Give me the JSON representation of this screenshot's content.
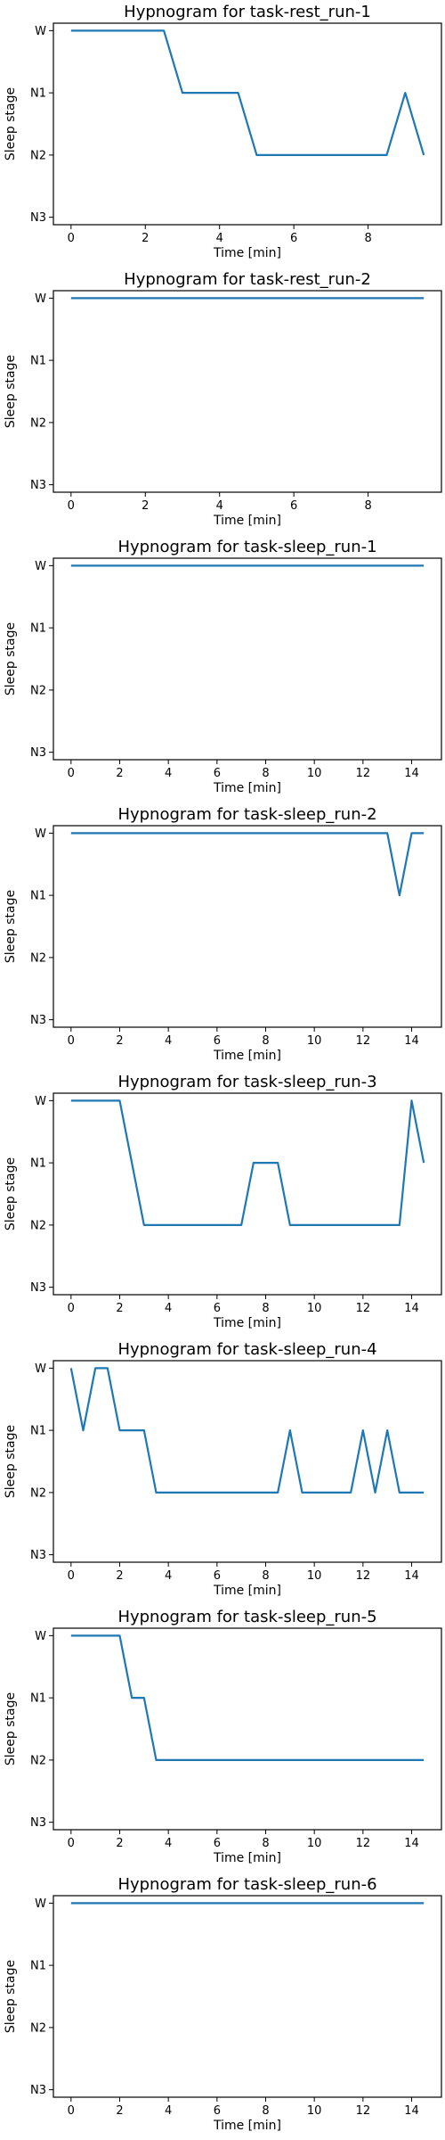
{
  "style": {
    "line_color": "#1f77b4",
    "axis_color": "#000000",
    "background": "#ffffff"
  },
  "chart_data": [
    {
      "type": "line",
      "title": "Hypnogram for task-rest_run-1",
      "xlabel": "Time [min]",
      "ylabel": "Sleep stage",
      "xlim": [
        -0.475,
        9.975
      ],
      "xticks": [
        0,
        2,
        4,
        6,
        8
      ],
      "yticks": [
        "W",
        "N1",
        "N2",
        "N3"
      ],
      "grid": false,
      "series": [
        {
          "x": [
            0,
            0.5,
            1,
            1.5,
            2,
            2.5,
            3,
            3.5,
            4,
            4.5,
            5,
            5.5,
            6,
            6.5,
            7,
            7.5,
            8,
            8.5,
            9,
            9.5
          ],
          "y": [
            "W",
            "W",
            "W",
            "W",
            "W",
            "W",
            "N1",
            "N1",
            "N1",
            "N1",
            "N2",
            "N2",
            "N2",
            "N2",
            "N2",
            "N2",
            "N2",
            "N2",
            "N1",
            "N2"
          ]
        }
      ]
    },
    {
      "type": "line",
      "title": "Hypnogram for task-rest_run-2",
      "xlabel": "Time [min]",
      "ylabel": "Sleep stage",
      "xlim": [
        -0.475,
        9.975
      ],
      "xticks": [
        0,
        2,
        4,
        6,
        8
      ],
      "yticks": [
        "W",
        "N1",
        "N2",
        "N3"
      ],
      "grid": false,
      "series": [
        {
          "x": [
            0,
            0.5,
            1,
            1.5,
            2,
            2.5,
            3,
            3.5,
            4,
            4.5,
            5,
            5.5,
            6,
            6.5,
            7,
            7.5,
            8,
            8.5,
            9,
            9.5
          ],
          "y": [
            "W",
            "W",
            "W",
            "W",
            "W",
            "W",
            "W",
            "W",
            "W",
            "W",
            "W",
            "W",
            "W",
            "W",
            "W",
            "W",
            "W",
            "W",
            "W",
            "W"
          ]
        }
      ]
    },
    {
      "type": "line",
      "title": "Hypnogram for task-sleep_run-1",
      "xlabel": "Time [min]",
      "ylabel": "Sleep stage",
      "xlim": [
        -0.725,
        15.225
      ],
      "xticks": [
        0,
        2,
        4,
        6,
        8,
        10,
        12,
        14
      ],
      "yticks": [
        "W",
        "N1",
        "N2",
        "N3"
      ],
      "grid": false,
      "series": [
        {
          "x": [
            0,
            0.5,
            1,
            1.5,
            2,
            2.5,
            3,
            3.5,
            4,
            4.5,
            5,
            5.5,
            6,
            6.5,
            7,
            7.5,
            8,
            8.5,
            9,
            9.5,
            10,
            10.5,
            11,
            11.5,
            12,
            12.5,
            13,
            13.5,
            14,
            14.5
          ],
          "y": [
            "W",
            "W",
            "W",
            "W",
            "W",
            "W",
            "W",
            "W",
            "W",
            "W",
            "W",
            "W",
            "W",
            "W",
            "W",
            "W",
            "W",
            "W",
            "W",
            "W",
            "W",
            "W",
            "W",
            "W",
            "W",
            "W",
            "W",
            "W",
            "W",
            "W"
          ]
        }
      ]
    },
    {
      "type": "line",
      "title": "Hypnogram for task-sleep_run-2",
      "xlabel": "Time [min]",
      "ylabel": "Sleep stage",
      "xlim": [
        -0.725,
        15.225
      ],
      "xticks": [
        0,
        2,
        4,
        6,
        8,
        10,
        12,
        14
      ],
      "yticks": [
        "W",
        "N1",
        "N2",
        "N3"
      ],
      "grid": false,
      "series": [
        {
          "x": [
            0,
            0.5,
            1,
            1.5,
            2,
            2.5,
            3,
            3.5,
            4,
            4.5,
            5,
            5.5,
            6,
            6.5,
            7,
            7.5,
            8,
            8.5,
            9,
            9.5,
            10,
            10.5,
            11,
            11.5,
            12,
            12.5,
            13,
            13.5,
            14,
            14.5
          ],
          "y": [
            "W",
            "W",
            "W",
            "W",
            "W",
            "W",
            "W",
            "W",
            "W",
            "W",
            "W",
            "W",
            "W",
            "W",
            "W",
            "W",
            "W",
            "W",
            "W",
            "W",
            "W",
            "W",
            "W",
            "W",
            "W",
            "W",
            "W",
            "N1",
            "W",
            "W"
          ]
        }
      ]
    },
    {
      "type": "line",
      "title": "Hypnogram for task-sleep_run-3",
      "xlabel": "Time [min]",
      "ylabel": "Sleep stage",
      "xlim": [
        -0.725,
        15.225
      ],
      "xticks": [
        0,
        2,
        4,
        6,
        8,
        10,
        12,
        14
      ],
      "yticks": [
        "W",
        "N1",
        "N2",
        "N3"
      ],
      "grid": false,
      "series": [
        {
          "x": [
            0,
            0.5,
            1,
            1.5,
            2,
            2.5,
            3,
            3.5,
            4,
            4.5,
            5,
            5.5,
            6,
            6.5,
            7,
            7.5,
            8,
            8.5,
            9,
            9.5,
            10,
            10.5,
            11,
            11.5,
            12,
            12.5,
            13,
            13.5,
            14,
            14.5
          ],
          "y": [
            "W",
            "W",
            "W",
            "W",
            "W",
            "N1",
            "N2",
            "N2",
            "N2",
            "N2",
            "N2",
            "N2",
            "N2",
            "N2",
            "N2",
            "N1",
            "N1",
            "N1",
            "N2",
            "N2",
            "N2",
            "N2",
            "N2",
            "N2",
            "N2",
            "N2",
            "N2",
            "N2",
            "W",
            "N1"
          ]
        }
      ]
    },
    {
      "type": "line",
      "title": "Hypnogram for task-sleep_run-4",
      "xlabel": "Time [min]",
      "ylabel": "Sleep stage",
      "xlim": [
        -0.725,
        15.225
      ],
      "xticks": [
        0,
        2,
        4,
        6,
        8,
        10,
        12,
        14
      ],
      "yticks": [
        "W",
        "N1",
        "N2",
        "N3"
      ],
      "grid": false,
      "series": [
        {
          "x": [
            0,
            0.5,
            1,
            1.5,
            2,
            2.5,
            3,
            3.5,
            4,
            4.5,
            5,
            5.5,
            6,
            6.5,
            7,
            7.5,
            8,
            8.5,
            9,
            9.5,
            10,
            10.5,
            11,
            11.5,
            12,
            12.5,
            13,
            13.5,
            14,
            14.5
          ],
          "y": [
            "W",
            "N1",
            "W",
            "W",
            "N1",
            "N1",
            "N1",
            "N2",
            "N2",
            "N2",
            "N2",
            "N2",
            "N2",
            "N2",
            "N2",
            "N2",
            "N2",
            "N2",
            "N1",
            "N2",
            "N2",
            "N2",
            "N2",
            "N2",
            "N1",
            "N2",
            "N1",
            "N2",
            "N2",
            "N2"
          ]
        }
      ]
    },
    {
      "type": "line",
      "title": "Hypnogram for task-sleep_run-5",
      "xlabel": "Time [min]",
      "ylabel": "Sleep stage",
      "xlim": [
        -0.725,
        15.225
      ],
      "xticks": [
        0,
        2,
        4,
        6,
        8,
        10,
        12,
        14
      ],
      "yticks": [
        "W",
        "N1",
        "N2",
        "N3"
      ],
      "grid": false,
      "series": [
        {
          "x": [
            0,
            0.5,
            1,
            1.5,
            2,
            2.5,
            3,
            3.5,
            4,
            4.5,
            5,
            5.5,
            6,
            6.5,
            7,
            7.5,
            8,
            8.5,
            9,
            9.5,
            10,
            10.5,
            11,
            11.5,
            12,
            12.5,
            13,
            13.5,
            14,
            14.5
          ],
          "y": [
            "W",
            "W",
            "W",
            "W",
            "W",
            "N1",
            "N1",
            "N2",
            "N2",
            "N2",
            "N2",
            "N2",
            "N2",
            "N2",
            "N2",
            "N2",
            "N2",
            "N2",
            "N2",
            "N2",
            "N2",
            "N2",
            "N2",
            "N2",
            "N2",
            "N2",
            "N2",
            "N2",
            "N2",
            "N2"
          ]
        }
      ]
    },
    {
      "type": "line",
      "title": "Hypnogram for task-sleep_run-6",
      "xlabel": "Time [min]",
      "ylabel": "Sleep stage",
      "xlim": [
        -0.725,
        15.225
      ],
      "xticks": [
        0,
        2,
        4,
        6,
        8,
        10,
        12,
        14
      ],
      "yticks": [
        "W",
        "N1",
        "N2",
        "N3"
      ],
      "grid": false,
      "series": [
        {
          "x": [
            0,
            0.5,
            1,
            1.5,
            2,
            2.5,
            3,
            3.5,
            4,
            4.5,
            5,
            5.5,
            6,
            6.5,
            7,
            7.5,
            8,
            8.5,
            9,
            9.5,
            10,
            10.5,
            11,
            11.5,
            12,
            12.5,
            13,
            13.5,
            14,
            14.5
          ],
          "y": [
            "W",
            "W",
            "W",
            "W",
            "W",
            "W",
            "W",
            "W",
            "W",
            "W",
            "W",
            "W",
            "W",
            "W",
            "W",
            "W",
            "W",
            "W",
            "W",
            "W",
            "W",
            "W",
            "W",
            "W",
            "W",
            "W",
            "W",
            "W",
            "W",
            "W"
          ]
        }
      ]
    }
  ]
}
